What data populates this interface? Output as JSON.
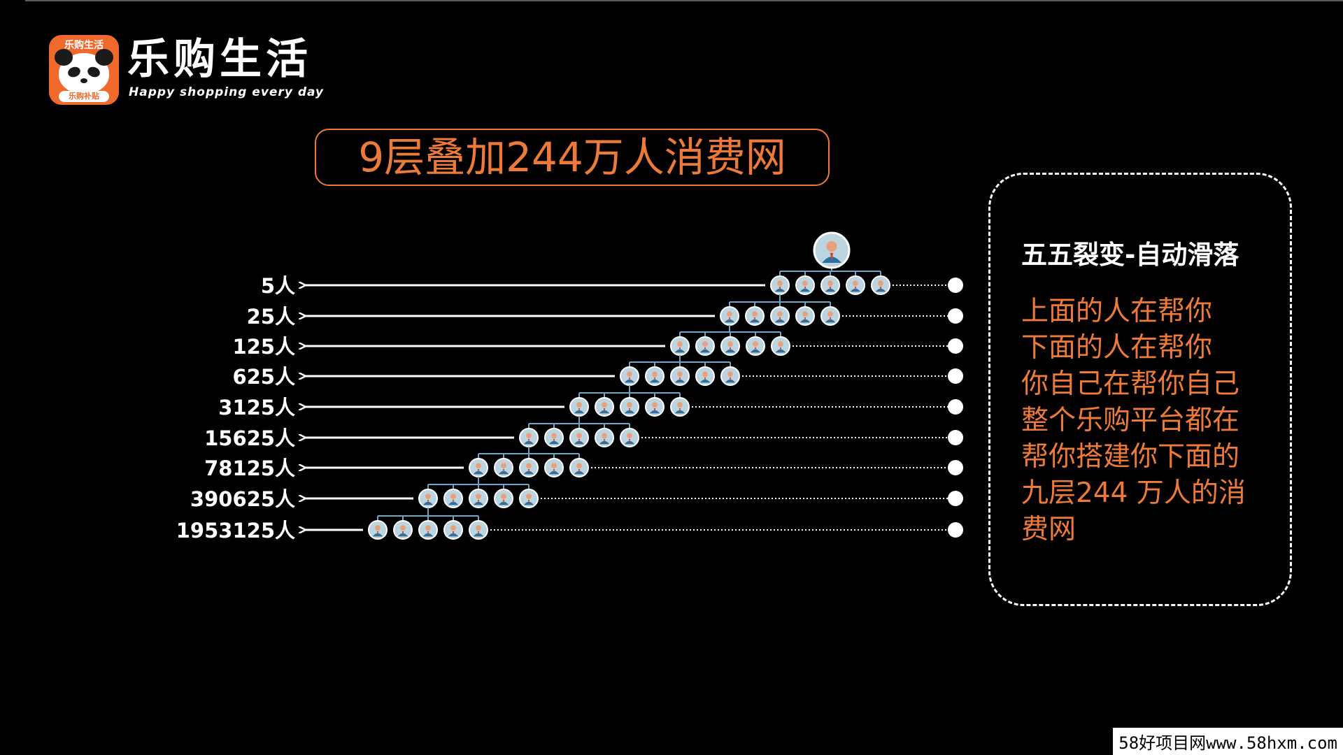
{
  "logo": {
    "top_text": "乐购生活",
    "badge_text": "乐购补贴",
    "brand_title": "乐购生活",
    "brand_subtitle": "Happy shopping every day"
  },
  "headline": "9层叠加244万人消费网",
  "levels": [
    {
      "label": "5人",
      "count": 5
    },
    {
      "label": "25人",
      "count": 25
    },
    {
      "label": "125人",
      "count": 125
    },
    {
      "label": "625人",
      "count": 625
    },
    {
      "label": "3125人",
      "count": 3125
    },
    {
      "label": "15625人",
      "count": 15625
    },
    {
      "label": "78125人",
      "count": 78125
    },
    {
      "label": "390625人",
      "count": 390625
    },
    {
      "label": "1953125人",
      "count": 1953125
    }
  ],
  "side_panel": {
    "title": "五五裂变-自动滑落",
    "lines": [
      "上面的人在帮你",
      "下面的人在帮你",
      "你自己在帮你自己",
      "整个乐购平台都在",
      "帮你搭建你下面的",
      "九层244 万人的消",
      "费网"
    ]
  },
  "watermark": "58好项目网www.58hxm.com",
  "colors": {
    "accent": "#ee7a3a",
    "background": "#000000",
    "text": "#ffffff",
    "tree_line": "#6aa6c8",
    "avatar_fill": "#bcd3e0"
  },
  "icons": {
    "root": "person-avatar-icon",
    "node": "person-avatar-icon",
    "arrow": "arrow-left-icon",
    "end": "dot-icon"
  }
}
